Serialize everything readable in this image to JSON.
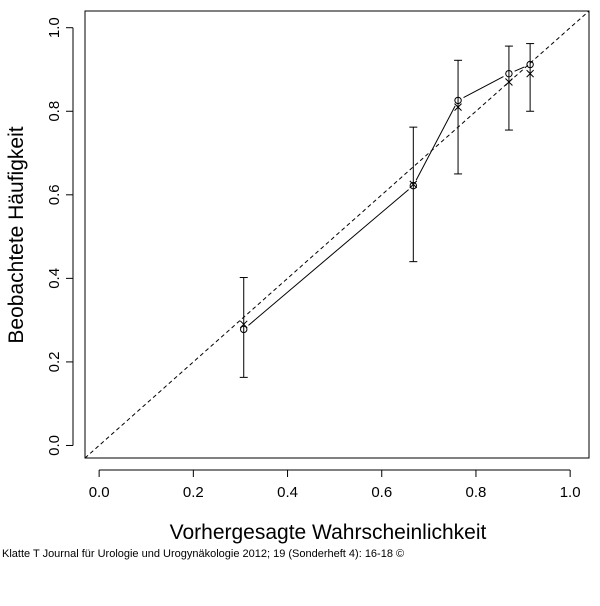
{
  "chart_data": {
    "type": "scatter",
    "xlabel": "Vorhergesagte Wahrscheinlichkeit",
    "ylabel": "Beobachtete Häufigkeit",
    "xlim": [
      -0.03,
      1.04
    ],
    "ylim": [
      -0.03,
      1.04
    ],
    "x_ticks": [
      0.0,
      0.2,
      0.4,
      0.6,
      0.8,
      1.0
    ],
    "y_ticks": [
      0.0,
      0.2,
      0.4,
      0.6,
      0.8,
      1.0
    ],
    "x_tick_labels": [
      "0.0",
      "0.2",
      "0.4",
      "0.6",
      "0.8",
      "1.0"
    ],
    "y_tick_labels": [
      "0.0",
      "0.2",
      "0.4",
      "0.6",
      "0.8",
      "1.0"
    ],
    "grid": false,
    "reference_line": {
      "from": [
        0,
        0
      ],
      "to": [
        1,
        1
      ],
      "style": "dashed"
    },
    "observed": {
      "marker": "circle",
      "connected": true,
      "x": [
        0.307,
        0.667,
        0.762,
        0.87,
        0.915
      ],
      "y": [
        0.278,
        0.622,
        0.826,
        0.89,
        0.912
      ],
      "ci_low": [
        0.163,
        0.44,
        0.65,
        0.755,
        0.8
      ],
      "ci_high": [
        0.402,
        0.762,
        0.922,
        0.956,
        0.962
      ]
    },
    "ideal": {
      "marker": "x",
      "x": [
        0.307,
        0.667,
        0.762,
        0.87,
        0.915
      ],
      "y": [
        0.29,
        0.625,
        0.81,
        0.87,
        0.89
      ]
    }
  },
  "caption": "Klatte T Journal für Urologie und Urogynäkologie 2012; 19 (Sonderheft 4): 16-18 ©"
}
